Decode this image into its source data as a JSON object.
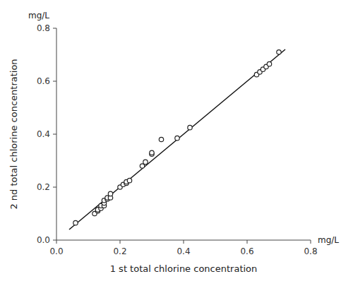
{
  "chart_data": {
    "type": "scatter",
    "xlabel": "1 st total chlorine concentration",
    "ylabel": "2 nd total chlorine concentration",
    "annotations": [
      "mg/L",
      "mg/L"
    ],
    "series": [
      {
        "type": "scatter",
        "marker": "open-circle",
        "color": "#222222",
        "x": [
          0.06,
          0.12,
          0.13,
          0.13,
          0.14,
          0.14,
          0.15,
          0.15,
          0.15,
          0.16,
          0.16,
          0.17,
          0.17,
          0.2,
          0.21,
          0.22,
          0.22,
          0.23,
          0.27,
          0.28,
          0.3,
          0.3,
          0.33,
          0.38,
          0.42,
          0.63,
          0.64,
          0.65,
          0.66,
          0.67,
          0.7
        ],
        "values": [
          0.065,
          0.1,
          0.11,
          0.115,
          0.12,
          0.13,
          0.13,
          0.14,
          0.15,
          0.155,
          0.16,
          0.16,
          0.175,
          0.2,
          0.21,
          0.215,
          0.22,
          0.225,
          0.28,
          0.295,
          0.325,
          0.33,
          0.38,
          0.385,
          0.425,
          0.625,
          0.635,
          0.645,
          0.655,
          0.665,
          0.71
        ]
      },
      {
        "type": "line",
        "line_style": "solid",
        "color": "#111111",
        "x": [
          0.04,
          0.72
        ],
        "values": [
          0.04,
          0.72
        ]
      }
    ],
    "xlim": [
      0.0,
      0.8
    ],
    "ylim": [
      0.0,
      0.8
    ],
    "xticks": [
      {
        "value": 0.0,
        "label": "0.0"
      },
      0.2,
      0.4,
      0.6,
      0.8
    ],
    "yticks": [
      {
        "value": 0.0,
        "label": "0.0"
      },
      0.2,
      0.4,
      0.6,
      0.8
    ],
    "grid": false
  }
}
